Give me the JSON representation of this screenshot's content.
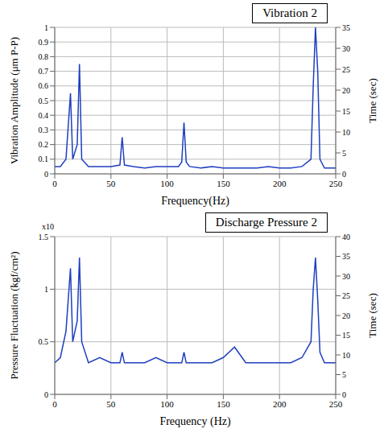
{
  "chart_data": [
    {
      "type": "line",
      "title": "Vibration 2",
      "x_label": "Frequency(Hz)",
      "y_label": "Vibration Amplitude (μm P-P)",
      "y2_label": "Time (sec)",
      "x": [
        0,
        5,
        10,
        14,
        16,
        20,
        22,
        24,
        30,
        40,
        50,
        58,
        60,
        62,
        70,
        80,
        90,
        100,
        110,
        113,
        115,
        117,
        120,
        130,
        140,
        150,
        160,
        170,
        180,
        190,
        200,
        210,
        220,
        228,
        230,
        232,
        234,
        236,
        240,
        250
      ],
      "series": [
        {
          "name": "Vibration 2",
          "color": "#1f3fbf",
          "values": [
            0.05,
            0.05,
            0.1,
            0.55,
            0.1,
            0.2,
            0.75,
            0.1,
            0.05,
            0.05,
            0.05,
            0.06,
            0.25,
            0.06,
            0.05,
            0.04,
            0.05,
            0.05,
            0.05,
            0.08,
            0.35,
            0.08,
            0.05,
            0.04,
            0.05,
            0.04,
            0.04,
            0.04,
            0.04,
            0.05,
            0.04,
            0.04,
            0.05,
            0.1,
            0.6,
            1.0,
            0.7,
            0.1,
            0.04,
            0.04
          ]
        }
      ],
      "xlim": [
        0,
        250
      ],
      "xticks": [
        0,
        50,
        100,
        150,
        200,
        250
      ],
      "ylim": [
        0,
        1
      ],
      "yticks": [
        0,
        0.1,
        0.2,
        0.3,
        0.4,
        0.5,
        0.6,
        0.7,
        0.8,
        0.9,
        1
      ],
      "y2lim": [
        0,
        35
      ],
      "y2ticks": [
        0,
        5,
        10,
        15,
        20,
        25,
        30,
        35
      ],
      "grid": true
    },
    {
      "type": "line",
      "title": "Discharge Pressure 2",
      "x_label": "Frequency (Hz)",
      "y_label": "Pressure Fluctuation (kgf/cm²)",
      "y2_label": "Time (sec)",
      "annotation": "x10",
      "x": [
        0,
        5,
        10,
        14,
        16,
        20,
        22,
        24,
        30,
        40,
        50,
        58,
        60,
        62,
        70,
        80,
        90,
        100,
        110,
        113,
        115,
        117,
        120,
        130,
        140,
        150,
        160,
        170,
        180,
        190,
        200,
        210,
        220,
        228,
        230,
        232,
        234,
        236,
        240,
        250
      ],
      "series": [
        {
          "name": "Discharge Pressure 2",
          "color": "#1f3fbf",
          "values": [
            0.3,
            0.35,
            0.6,
            1.2,
            0.5,
            0.7,
            1.3,
            0.5,
            0.3,
            0.35,
            0.3,
            0.3,
            0.4,
            0.3,
            0.3,
            0.3,
            0.35,
            0.3,
            0.3,
            0.3,
            0.4,
            0.3,
            0.3,
            0.3,
            0.3,
            0.35,
            0.45,
            0.3,
            0.3,
            0.3,
            0.3,
            0.3,
            0.35,
            0.5,
            1.0,
            1.3,
            0.9,
            0.4,
            0.3,
            0.3
          ]
        }
      ],
      "xlim": [
        0,
        250
      ],
      "xticks": [
        0,
        50,
        100,
        150,
        200,
        250
      ],
      "ylim": [
        0,
        1.5
      ],
      "yticks": [
        0,
        0.5,
        1,
        1.5
      ],
      "y2lim": [
        0,
        40
      ],
      "y2ticks": [
        0,
        5,
        10,
        15,
        20,
        25,
        30,
        35,
        40
      ],
      "grid": true
    }
  ]
}
